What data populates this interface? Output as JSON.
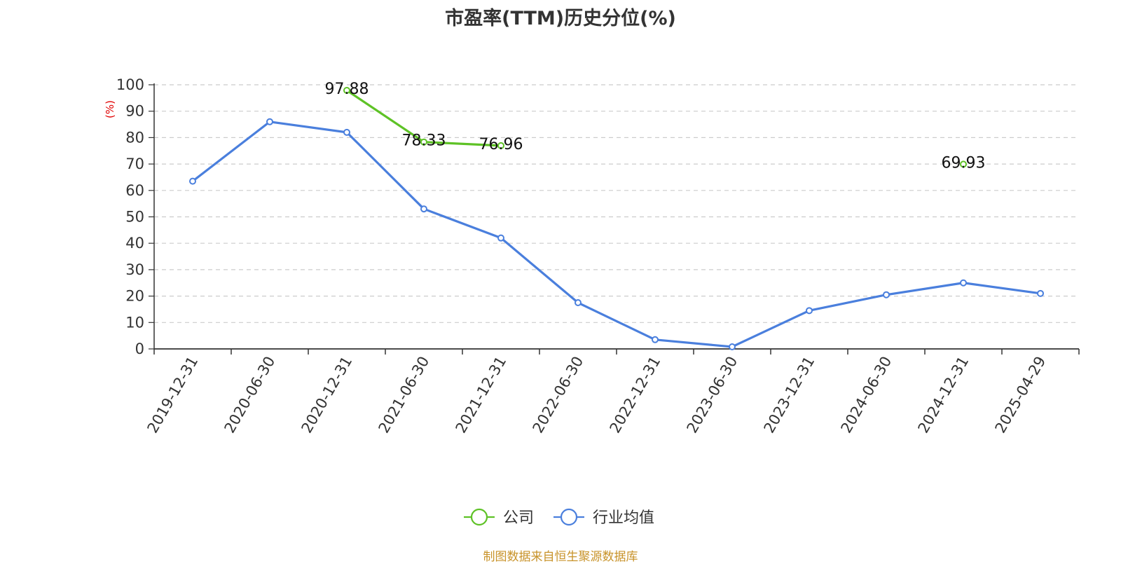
{
  "chart_data": {
    "type": "line",
    "title": "市盈率(TTM)历史分位(%)",
    "ylabel": "(%)",
    "xlabel": "",
    "ylim": [
      0,
      100
    ],
    "yticks": [
      0,
      10,
      20,
      30,
      40,
      50,
      60,
      70,
      80,
      90,
      100
    ],
    "grid": true,
    "legend_position": "bottom-center",
    "categories": [
      "2019-12-31",
      "2020-06-30",
      "2020-12-31",
      "2021-06-30",
      "2021-12-31",
      "2022-06-30",
      "2022-12-31",
      "2023-06-30",
      "2023-12-31",
      "2024-06-30",
      "2024-12-31",
      "2025-04-29"
    ],
    "series": [
      {
        "name": "公司",
        "color": "#5ec226",
        "show_labels": true,
        "values": [
          null,
          null,
          97.88,
          78.33,
          76.96,
          null,
          null,
          null,
          null,
          null,
          69.93,
          null
        ]
      },
      {
        "name": "行业均值",
        "color": "#4a7fdd",
        "show_labels": false,
        "values": [
          63.5,
          86.0,
          82.0,
          53.0,
          42.0,
          17.5,
          3.5,
          0.8,
          14.5,
          20.5,
          25.0,
          21.0
        ]
      }
    ]
  },
  "footer": {
    "source": "制图数据来自恒生聚源数据库"
  }
}
